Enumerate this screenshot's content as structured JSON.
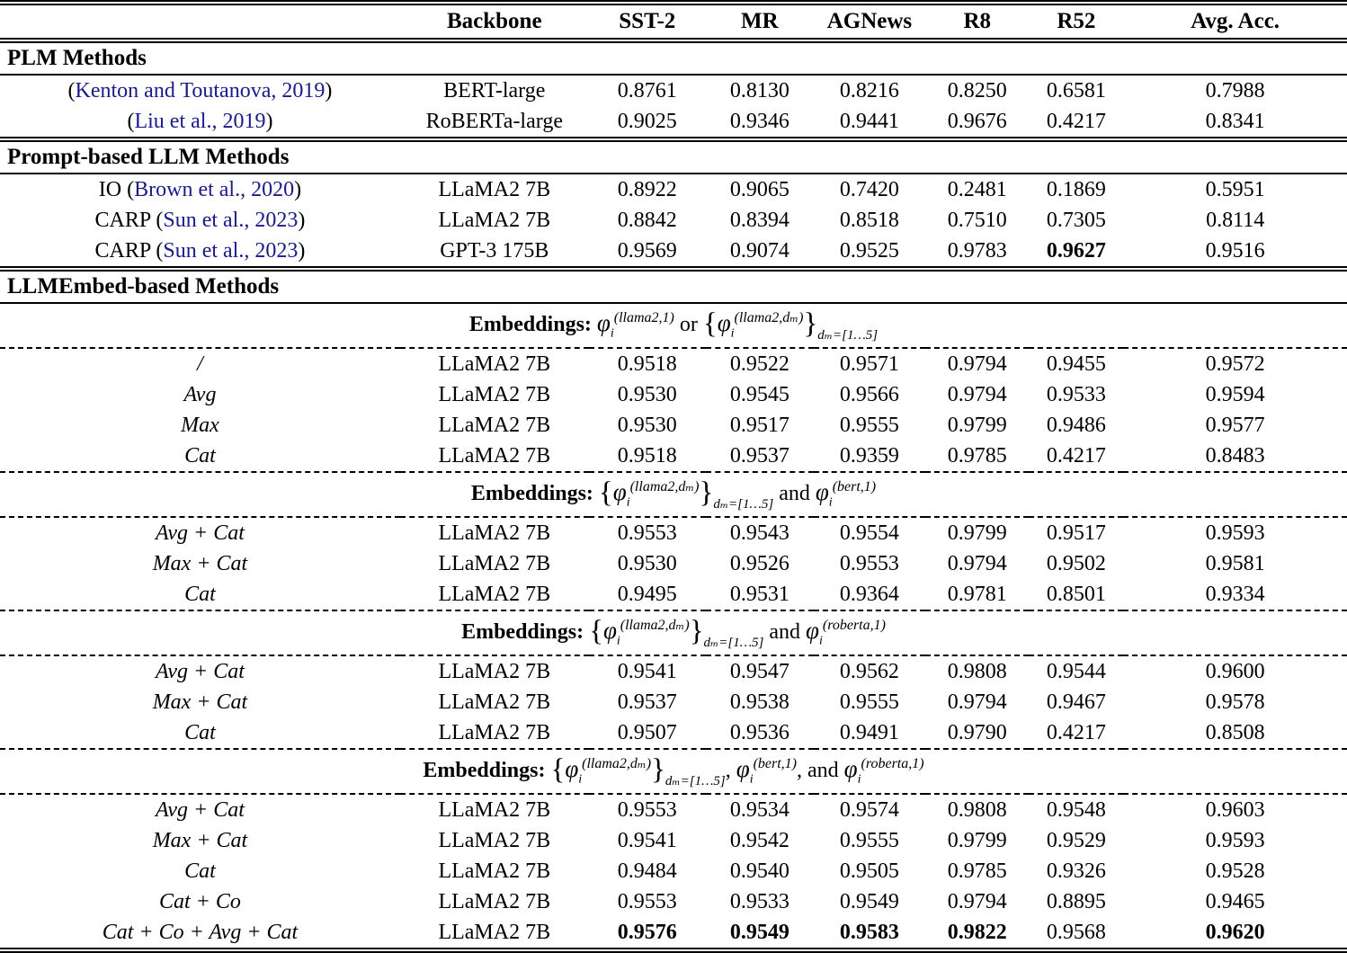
{
  "table": {
    "citation_color": "#1a1a8c",
    "columns": [
      "",
      "Backbone",
      "SST-2",
      "MR",
      "AGNews",
      "R8",
      "R52",
      "Avg. Acc."
    ],
    "sections": [
      {
        "title": "PLM Methods",
        "rows": [
          {
            "method_pre": "(",
            "method_cite": "Kenton and Toutanova, 2019",
            "method_post": ")",
            "backbone": "BERT-large",
            "values": [
              "0.8761",
              "0.8130",
              "0.8216",
              "0.8250",
              "0.6581",
              "0.7988"
            ],
            "bold": []
          },
          {
            "method_pre": "(",
            "method_cite": "Liu et al., 2019",
            "method_post": ")",
            "backbone": "RoBERTa-large",
            "values": [
              "0.9025",
              "0.9346",
              "0.9441",
              "0.9676",
              "0.4217",
              "0.8341"
            ],
            "bold": []
          }
        ]
      },
      {
        "title": "Prompt-based LLM Methods",
        "rows": [
          {
            "method_pre": "IO (",
            "method_cite": "Brown et al., 2020",
            "method_post": ")",
            "backbone": "LLaMA2 7B",
            "values": [
              "0.8922",
              "0.9065",
              "0.7420",
              "0.2481",
              "0.1869",
              "0.5951"
            ],
            "bold": []
          },
          {
            "method_pre": "CARP (",
            "method_cite": "Sun et al., 2023",
            "method_post": ")",
            "backbone": "LLaMA2 7B",
            "values": [
              "0.8842",
              "0.8394",
              "0.8518",
              "0.7510",
              "0.7305",
              "0.8114"
            ],
            "bold": []
          },
          {
            "method_pre": "CARP (",
            "method_cite": "Sun et al., 2023",
            "method_post": ")",
            "backbone": "GPT-3 175B",
            "values": [
              "0.9569",
              "0.9074",
              "0.9525",
              "0.9783",
              "0.9627",
              "0.9516"
            ],
            "bold": [
              4
            ]
          }
        ]
      },
      {
        "title": "LLMEmbed-based Methods",
        "groups": [
          {
            "formula": [
              {
                "k": "b",
                "t": "Embeddings: "
              },
              {
                "k": "phi",
                "sub": "i",
                "sup": "(llama2,1)"
              },
              {
                "k": "t",
                "t": " or "
              },
              {
                "k": "brace",
                "t": "{"
              },
              {
                "k": "phi",
                "sub": "i",
                "sup": "(llama2,dₘ)"
              },
              {
                "k": "brace",
                "t": "}"
              },
              {
                "k": "lowsub",
                "t": "dₘ=[1…5]"
              }
            ],
            "rows": [
              {
                "method_math": "/",
                "backbone": "LLaMA2 7B",
                "values": [
                  "0.9518",
                  "0.9522",
                  "0.9571",
                  "0.9794",
                  "0.9455",
                  "0.9572"
                ],
                "bold": []
              },
              {
                "method_math": "Avg",
                "backbone": "LLaMA2 7B",
                "values": [
                  "0.9530",
                  "0.9545",
                  "0.9566",
                  "0.9794",
                  "0.9533",
                  "0.9594"
                ],
                "bold": []
              },
              {
                "method_math": "Max",
                "backbone": "LLaMA2 7B",
                "values": [
                  "0.9530",
                  "0.9517",
                  "0.9555",
                  "0.9799",
                  "0.9486",
                  "0.9577"
                ],
                "bold": []
              },
              {
                "method_math": "Cat",
                "backbone": "LLaMA2 7B",
                "values": [
                  "0.9518",
                  "0.9537",
                  "0.9359",
                  "0.9785",
                  "0.4217",
                  "0.8483"
                ],
                "bold": []
              }
            ]
          },
          {
            "formula": [
              {
                "k": "b",
                "t": "Embeddings: "
              },
              {
                "k": "brace",
                "t": "{"
              },
              {
                "k": "phi",
                "sub": "i",
                "sup": "(llama2,dₘ)"
              },
              {
                "k": "brace",
                "t": "}"
              },
              {
                "k": "lowsub",
                "t": "dₘ=[1…5]"
              },
              {
                "k": "t",
                "t": " and "
              },
              {
                "k": "phi",
                "sub": "i",
                "sup": "(bert,1)"
              }
            ],
            "rows": [
              {
                "method_math": "Avg + Cat",
                "backbone": "LLaMA2 7B",
                "values": [
                  "0.9553",
                  "0.9543",
                  "0.9554",
                  "0.9799",
                  "0.9517",
                  "0.9593"
                ],
                "bold": []
              },
              {
                "method_math": "Max + Cat",
                "backbone": "LLaMA2 7B",
                "values": [
                  "0.9530",
                  "0.9526",
                  "0.9553",
                  "0.9794",
                  "0.9502",
                  "0.9581"
                ],
                "bold": []
              },
              {
                "method_math": "Cat",
                "backbone": "LLaMA2 7B",
                "values": [
                  "0.9495",
                  "0.9531",
                  "0.9364",
                  "0.9781",
                  "0.8501",
                  "0.9334"
                ],
                "bold": []
              }
            ]
          },
          {
            "formula": [
              {
                "k": "b",
                "t": "Embeddings: "
              },
              {
                "k": "brace",
                "t": "{"
              },
              {
                "k": "phi",
                "sub": "i",
                "sup": "(llama2,dₘ)"
              },
              {
                "k": "brace",
                "t": "}"
              },
              {
                "k": "lowsub",
                "t": "dₘ=[1…5]"
              },
              {
                "k": "t",
                "t": " and "
              },
              {
                "k": "phi",
                "sub": "i",
                "sup": "(roberta,1)"
              }
            ],
            "rows": [
              {
                "method_math": "Avg + Cat",
                "backbone": "LLaMA2 7B",
                "values": [
                  "0.9541",
                  "0.9547",
                  "0.9562",
                  "0.9808",
                  "0.9544",
                  "0.9600"
                ],
                "bold": []
              },
              {
                "method_math": "Max + Cat",
                "backbone": "LLaMA2 7B",
                "values": [
                  "0.9537",
                  "0.9538",
                  "0.9555",
                  "0.9794",
                  "0.9467",
                  "0.9578"
                ],
                "bold": []
              },
              {
                "method_math": "Cat",
                "backbone": "LLaMA2 7B",
                "values": [
                  "0.9507",
                  "0.9536",
                  "0.9491",
                  "0.9790",
                  "0.4217",
                  "0.8508"
                ],
                "bold": []
              }
            ]
          },
          {
            "formula": [
              {
                "k": "b",
                "t": "Embeddings: "
              },
              {
                "k": "brace",
                "t": "{"
              },
              {
                "k": "phi",
                "sub": "i",
                "sup": "(llama2,dₘ)"
              },
              {
                "k": "brace",
                "t": "}"
              },
              {
                "k": "lowsub",
                "t": "dₘ=[1…5]"
              },
              {
                "k": "t",
                "t": ", "
              },
              {
                "k": "phi",
                "sub": "i",
                "sup": "(bert,1)"
              },
              {
                "k": "t",
                "t": ", and "
              },
              {
                "k": "phi",
                "sub": "i",
                "sup": "(roberta,1)"
              }
            ],
            "rows": [
              {
                "method_math": "Avg + Cat",
                "backbone": "LLaMA2 7B",
                "values": [
                  "0.9553",
                  "0.9534",
                  "0.9574",
                  "0.9808",
                  "0.9548",
                  "0.9603"
                ],
                "bold": []
              },
              {
                "method_math": "Max + Cat",
                "backbone": "LLaMA2 7B",
                "values": [
                  "0.9541",
                  "0.9542",
                  "0.9555",
                  "0.9799",
                  "0.9529",
                  "0.9593"
                ],
                "bold": []
              },
              {
                "method_math": "Cat",
                "backbone": "LLaMA2 7B",
                "values": [
                  "0.9484",
                  "0.9540",
                  "0.9505",
                  "0.9785",
                  "0.9326",
                  "0.9528"
                ],
                "bold": []
              },
              {
                "method_math": "Cat + Co",
                "backbone": "LLaMA2 7B",
                "values": [
                  "0.9553",
                  "0.9533",
                  "0.9549",
                  "0.9794",
                  "0.8895",
                  "0.9465"
                ],
                "bold": []
              },
              {
                "method_math": "Cat + Co + Avg + Cat",
                "backbone": "LLaMA2 7B",
                "values": [
                  "0.9576",
                  "0.9549",
                  "0.9583",
                  "0.9822",
                  "0.9568",
                  "0.9620"
                ],
                "bold": [
                  0,
                  1,
                  2,
                  3,
                  5
                ]
              }
            ]
          }
        ]
      }
    ]
  }
}
